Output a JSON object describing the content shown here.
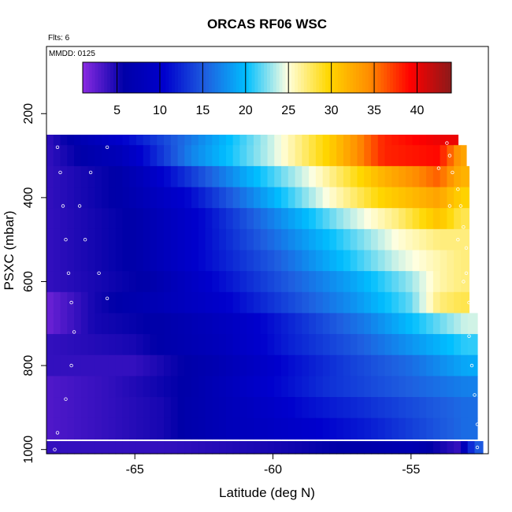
{
  "chart_data": {
    "type": "heatmap",
    "title": "ORCAS RF06 WSC",
    "flights_note": "Flts: 6",
    "date_note": "MMDD: 0125",
    "xlabel": "Latitude (deg N)",
    "ylabel": "PSXC (mbar)",
    "xlim": [
      -68.2,
      -52.2
    ],
    "ylim": [
      1010,
      40
    ],
    "y_reversed": true,
    "x_ticks": [
      -65,
      -60,
      -55
    ],
    "y_ticks": [
      200,
      400,
      600,
      800,
      1000
    ],
    "colorbar": {
      "range": [
        1,
        44
      ],
      "ticks": [
        5,
        10,
        15,
        20,
        25,
        30,
        35,
        40
      ],
      "stops": [
        "#8a2be2",
        "#0000a8",
        "#0000cd",
        "#1e5fe0",
        "#00bfff",
        "#ffffe0",
        "#ffd700",
        "#ff8c00",
        "#ff0000",
        "#8b1a1a"
      ]
    },
    "levels": [
      {
        "p": 200,
        "x_end": -53.7,
        "vals": [
          [
            -68.2,
            4
          ],
          [
            -65.6,
            5
          ],
          [
            -64.5,
            10
          ],
          [
            -63,
            15
          ],
          [
            -60.5,
            20
          ],
          [
            -58,
            22
          ],
          [
            -56,
            23
          ],
          [
            -54,
            25
          ]
        ]
      },
      {
        "p": 250,
        "x_end": -53.3,
        "vals": [
          [
            -68.2,
            4
          ],
          [
            -66.5,
            8
          ],
          [
            -64,
            14
          ],
          [
            -62,
            19
          ],
          [
            -60,
            24
          ],
          [
            -58,
            30
          ],
          [
            -56,
            38
          ],
          [
            -54,
            40
          ]
        ]
      },
      {
        "p": 300,
        "x_end": -53.0,
        "vals": [
          [
            -68.2,
            4
          ],
          [
            -65.5,
            8
          ],
          [
            -63,
            17
          ],
          [
            -60,
            24
          ],
          [
            -58,
            30
          ],
          [
            -56,
            38
          ],
          [
            -54,
            39
          ],
          [
            -53.2,
            33
          ]
        ]
      },
      {
        "p": 350,
        "x_end": -52.9,
        "vals": [
          [
            -68.2,
            4
          ],
          [
            -65.5,
            6
          ],
          [
            -63.5,
            12
          ],
          [
            -61,
            19
          ],
          [
            -58.5,
            25
          ],
          [
            -56,
            32
          ],
          [
            -54,
            36
          ],
          [
            -53.2,
            32
          ]
        ]
      },
      {
        "p": 400,
        "x_end": -52.9,
        "vals": [
          [
            -68.2,
            4
          ],
          [
            -65.5,
            6
          ],
          [
            -63,
            11
          ],
          [
            -60.5,
            18
          ],
          [
            -58,
            25
          ],
          [
            -56,
            30
          ],
          [
            -54,
            33
          ],
          [
            -53.2,
            30
          ]
        ]
      },
      {
        "p": 450,
        "x_end": -52.9,
        "vals": [
          [
            -68.2,
            4
          ],
          [
            -65,
            6
          ],
          [
            -62.5,
            11
          ],
          [
            -60,
            17
          ],
          [
            -57.5,
            23
          ],
          [
            -55.5,
            27
          ],
          [
            -54,
            31
          ],
          [
            -53.2,
            28
          ]
        ]
      },
      {
        "p": 500,
        "x_end": -52.9,
        "vals": [
          [
            -68.2,
            4
          ],
          [
            -65,
            6
          ],
          [
            -62.5,
            11
          ],
          [
            -60,
            16
          ],
          [
            -57.5,
            21
          ],
          [
            -55.5,
            25
          ],
          [
            -54,
            27
          ],
          [
            -53.2,
            27
          ]
        ]
      },
      {
        "p": 550,
        "x_end": -52.9,
        "vals": [
          [
            -68.2,
            4
          ],
          [
            -65,
            6
          ],
          [
            -62.5,
            11
          ],
          [
            -60,
            15
          ],
          [
            -57.5,
            20
          ],
          [
            -55.5,
            24
          ],
          [
            -54,
            26
          ],
          [
            -53.2,
            27
          ]
        ]
      },
      {
        "p": 600,
        "x_end": -52.9,
        "vals": [
          [
            -68.2,
            4
          ],
          [
            -64.5,
            6
          ],
          [
            -62,
            11
          ],
          [
            -59.5,
            15
          ],
          [
            -57,
            19
          ],
          [
            -55,
            23
          ],
          [
            -54,
            26
          ],
          [
            -53.2,
            27
          ]
        ]
      },
      {
        "p": 650,
        "x_end": -52.9,
        "vals": [
          [
            -68.2,
            2
          ],
          [
            -66.5,
            5
          ],
          [
            -64.5,
            7
          ],
          [
            -62,
            10
          ],
          [
            -59.5,
            14
          ],
          [
            -57,
            18
          ],
          [
            -55,
            22
          ],
          [
            -54,
            27
          ],
          [
            -53.2,
            28
          ]
        ]
      },
      {
        "p": 700,
        "x_end": -52.6,
        "vals": [
          [
            -68.2,
            2
          ],
          [
            -66.5,
            5
          ],
          [
            -64,
            6
          ],
          [
            -61.5,
            9
          ],
          [
            -59,
            13
          ],
          [
            -56.5,
            17
          ],
          [
            -54.5,
            21
          ],
          [
            -53,
            24
          ]
        ]
      },
      {
        "p": 750,
        "x_end": -52.6,
        "vals": [
          [
            -68.2,
            4
          ],
          [
            -65,
            5
          ],
          [
            -62,
            8
          ],
          [
            -59.5,
            12
          ],
          [
            -57,
            15
          ],
          [
            -55,
            18
          ],
          [
            -53,
            21
          ]
        ]
      },
      {
        "p": 800,
        "x_end": -52.6,
        "vals": [
          [
            -68.2,
            4
          ],
          [
            -65,
            4
          ],
          [
            -62,
            7
          ],
          [
            -59.5,
            11
          ],
          [
            -57,
            14
          ],
          [
            -55,
            16
          ],
          [
            -53,
            19
          ]
        ]
      },
      {
        "p": 850,
        "x_end": -52.6,
        "vals": [
          [
            -68.2,
            3
          ],
          [
            -66,
            4
          ],
          [
            -63,
            6
          ],
          [
            -60.5,
            10
          ],
          [
            -58,
            13
          ],
          [
            -55.5,
            15
          ],
          [
            -53,
            17
          ]
        ]
      },
      {
        "p": 900,
        "x_end": -52.6,
        "vals": [
          [
            -68.2,
            3
          ],
          [
            -66,
            4
          ],
          [
            -64,
            5
          ],
          [
            -61.5,
            8
          ],
          [
            -59,
            11
          ],
          [
            -56.5,
            13
          ],
          [
            -53,
            16
          ]
        ]
      },
      {
        "p": 950,
        "x_end": -52.6,
        "vals": [
          [
            -68.2,
            3
          ],
          [
            -66,
            4
          ],
          [
            -64,
            5
          ],
          [
            -61.5,
            8
          ],
          [
            -59,
            10
          ],
          [
            -56.5,
            12
          ],
          [
            -53,
            16
          ]
        ]
      },
      {
        "p": 1000,
        "x_end": -52.4,
        "vals": [
          [
            -68.2,
            4
          ],
          [
            -64,
            4
          ],
          [
            -60,
            5
          ],
          [
            -57,
            6
          ],
          [
            -55,
            7
          ],
          [
            -53.3,
            4
          ],
          [
            -52.7,
            15
          ]
        ]
      }
    ],
    "track": [
      [
        -68.0,
        200
      ],
      [
        -66.5,
        200
      ],
      [
        -64.0,
        200
      ],
      [
        -61.0,
        200
      ],
      [
        -58.5,
        200
      ],
      [
        -56.0,
        200
      ],
      [
        -54.6,
        200
      ],
      [
        -54.2,
        215
      ],
      [
        -53.8,
        240
      ],
      [
        -53.7,
        270
      ],
      [
        -53.6,
        300
      ],
      [
        -53.5,
        340
      ],
      [
        -53.3,
        380
      ],
      [
        -53.2,
        420
      ],
      [
        -53.1,
        470
      ],
      [
        -53.0,
        520
      ],
      [
        -53.0,
        580
      ],
      [
        -52.9,
        650
      ],
      [
        -52.9,
        730
      ],
      [
        -52.8,
        800
      ],
      [
        -52.7,
        870
      ],
      [
        -52.6,
        940
      ],
      [
        -52.6,
        995
      ],
      [
        -67.9,
        215
      ],
      [
        -67.8,
        280
      ],
      [
        -67.7,
        340
      ],
      [
        -67.6,
        420
      ],
      [
        -67.5,
        500
      ],
      [
        -67.4,
        580
      ],
      [
        -67.3,
        650
      ],
      [
        -67.2,
        720
      ],
      [
        -67.3,
        800
      ],
      [
        -67.5,
        880
      ],
      [
        -67.8,
        960
      ],
      [
        -67.9,
        1000
      ],
      [
        -65.5,
        230
      ],
      [
        -66.0,
        280
      ],
      [
        -66.6,
        340
      ],
      [
        -67.0,
        420
      ],
      [
        -66.8,
        500
      ],
      [
        -66.3,
        580
      ],
      [
        -66.0,
        640
      ],
      [
        -54.0,
        330
      ],
      [
        -53.6,
        420
      ],
      [
        -53.3,
        500
      ],
      [
        -53.1,
        600
      ]
    ]
  }
}
